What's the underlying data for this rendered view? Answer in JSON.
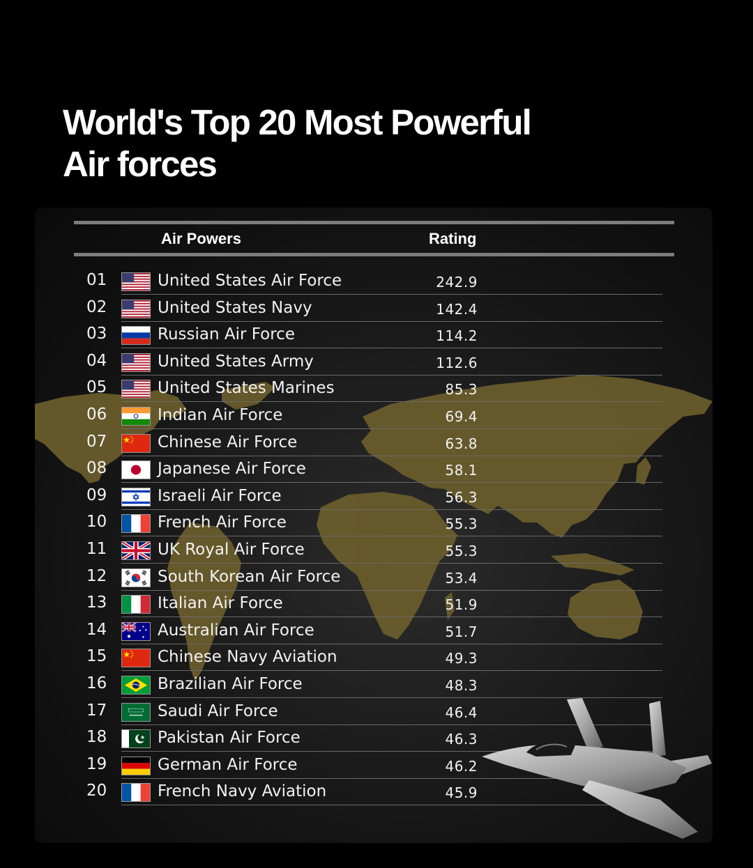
{
  "title_line1": "World's Top 20 Most Powerful",
  "title_line2": "Air forces",
  "chart_data": {
    "type": "table",
    "title": "World's Top 20 Most Powerful Air forces",
    "columns": [
      "Air Powers",
      "Rating"
    ],
    "rows": [
      {
        "rank": "01",
        "flag": "usa-flag-icon",
        "name": "United States Air Force",
        "rating": "242.9"
      },
      {
        "rank": "02",
        "flag": "usa-flag-icon",
        "name": "United States Navy",
        "rating": "142.4"
      },
      {
        "rank": "03",
        "flag": "russia-flag-icon",
        "name": "Russian Air Force",
        "rating": "114.2"
      },
      {
        "rank": "04",
        "flag": "usa-flag-icon",
        "name": "United States Army",
        "rating": "112.6"
      },
      {
        "rank": "05",
        "flag": "usa-flag-icon",
        "name": "United States Marines",
        "rating": "85.3"
      },
      {
        "rank": "06",
        "flag": "india-flag-icon",
        "name": "Indian Air Force",
        "rating": "69.4"
      },
      {
        "rank": "07",
        "flag": "china-flag-icon",
        "name": "Chinese Air Force",
        "rating": "63.8"
      },
      {
        "rank": "08",
        "flag": "japan-flag-icon",
        "name": "Japanese Air Force",
        "rating": "58.1"
      },
      {
        "rank": "09",
        "flag": "israel-flag-icon",
        "name": "Israeli Air Force",
        "rating": "56.3"
      },
      {
        "rank": "10",
        "flag": "france-flag-icon",
        "name": "French Air Force",
        "rating": "55.3"
      },
      {
        "rank": "11",
        "flag": "uk-flag-icon",
        "name": "UK Royal Air Force",
        "rating": "55.3"
      },
      {
        "rank": "12",
        "flag": "south-korea-flag-icon",
        "name": "South Korean Air Force",
        "rating": "53.4"
      },
      {
        "rank": "13",
        "flag": "italy-flag-icon",
        "name": "Italian Air Force",
        "rating": "51.9"
      },
      {
        "rank": "14",
        "flag": "australia-flag-icon",
        "name": "Australian Air Force",
        "rating": "51.7"
      },
      {
        "rank": "15",
        "flag": "china-flag-icon",
        "name": "Chinese Navy Aviation",
        "rating": "49.3"
      },
      {
        "rank": "16",
        "flag": "brazil-flag-icon",
        "name": "Brazilian Air Force",
        "rating": "48.3"
      },
      {
        "rank": "17",
        "flag": "saudi-flag-icon",
        "name": "Saudi Air Force",
        "rating": "46.4"
      },
      {
        "rank": "18",
        "flag": "pakistan-flag-icon",
        "name": "Pakistan Air Force",
        "rating": "46.3"
      },
      {
        "rank": "19",
        "flag": "germany-flag-icon",
        "name": "German Air Force",
        "rating": "46.2"
      },
      {
        "rank": "20",
        "flag": "france-flag-icon",
        "name": "French Navy Aviation",
        "rating": "45.9"
      }
    ]
  },
  "colors": {
    "background": "#000000",
    "panel": "#1a1a1a",
    "map": "#6b5d2c",
    "text": "#f2f2f2",
    "rule": "#6a6a6a"
  },
  "decorations": {
    "background_image": "world-map-icon",
    "aircraft_image": "fighter-jet-icon"
  }
}
